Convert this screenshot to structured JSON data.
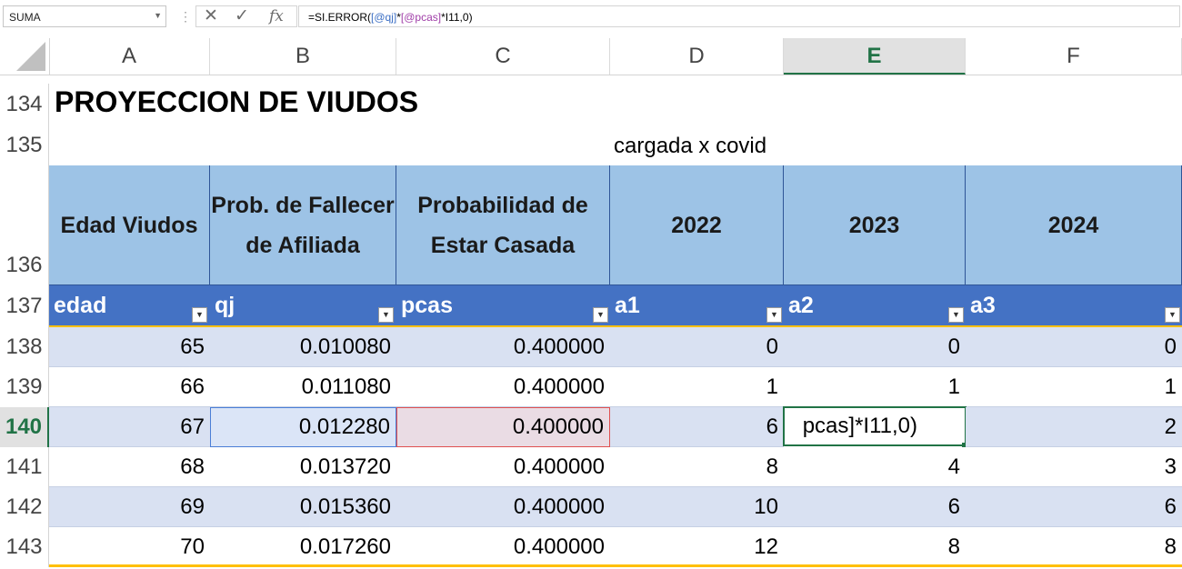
{
  "formula_bar": {
    "name_box": "SUMA",
    "cancel_icon": "✕",
    "enter_icon": "✓",
    "fx_label": "fx",
    "formula_prefix": "=SI.ERROR(",
    "formula_ref1": "[@qj]",
    "formula_op": "*",
    "formula_ref2": "[@pcas]",
    "formula_suffix": "*I11,0)"
  },
  "columns": [
    "A",
    "B",
    "C",
    "D",
    "E",
    "F"
  ],
  "selected_column": "E",
  "rows": [
    "134",
    "135",
    "136",
    "137",
    "138",
    "139",
    "140",
    "141",
    "142",
    "143"
  ],
  "selected_row": "140",
  "sheet": {
    "title": "PROYECCION DE VIUDOS",
    "note": "cargada x covid",
    "header_labels": [
      "Edad Viudos",
      "Prob. de Fallecer de Afiliada",
      "Probabilidad de Estar Casada",
      "2022",
      "2023",
      "2024"
    ],
    "table_columns": [
      "edad",
      "qj",
      "pcas",
      "a1",
      "a2",
      "a3"
    ],
    "data": [
      [
        "65",
        "0.010080",
        "0.400000",
        "0",
        "0",
        "0"
      ],
      [
        "66",
        "0.011080",
        "0.400000",
        "1",
        "1",
        "1"
      ],
      [
        "67",
        "0.012280",
        "0.400000",
        "6",
        "pcas]*I11,0)",
        "2"
      ],
      [
        "68",
        "0.013720",
        "0.400000",
        "8",
        "4",
        "3"
      ],
      [
        "69",
        "0.015360",
        "0.400000",
        "10",
        "6",
        "6"
      ],
      [
        "70",
        "0.017260",
        "0.400000",
        "12",
        "8",
        "8"
      ]
    ]
  },
  "colors": {
    "header_fill": "#9dc3e6",
    "table_header_fill": "#4472c4",
    "band_fill": "#d9e1f2",
    "selection_green": "#217346",
    "ref_blue": "#3c6fc4",
    "ref_red": "#e05050"
  }
}
